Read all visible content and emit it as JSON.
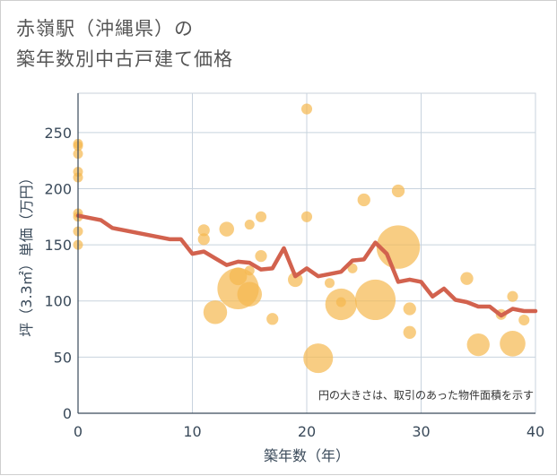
{
  "title_line1": "赤嶺駅（沖縄県）の",
  "title_line2": "築年数別中古戸建て価格",
  "chart_data": {
    "type": "scatter",
    "title": "赤嶺駅（沖縄県）の築年数別中古戸建て価格",
    "xlabel": "築年数（年）",
    "ylabel": "坪（3.3㎡）単価（万円）",
    "xlim": [
      0,
      40
    ],
    "ylim": [
      0,
      285
    ],
    "xticks": [
      0,
      10,
      20,
      30,
      40
    ],
    "yticks": [
      0,
      50,
      100,
      150,
      200,
      250
    ],
    "grid": true,
    "note": "円の大きさは、取引のあった物件面積を示す",
    "bubble_color": "#f5b84f",
    "line_color": "#d2624e",
    "points": [
      {
        "x": 0,
        "y": 240,
        "s": 1
      },
      {
        "x": 0,
        "y": 238,
        "s": 1
      },
      {
        "x": 0,
        "y": 231,
        "s": 1
      },
      {
        "x": 0,
        "y": 215,
        "s": 1
      },
      {
        "x": 0,
        "y": 210,
        "s": 1
      },
      {
        "x": 0,
        "y": 178,
        "s": 1
      },
      {
        "x": 0,
        "y": 175,
        "s": 1
      },
      {
        "x": 0,
        "y": 162,
        "s": 1
      },
      {
        "x": 0,
        "y": 150,
        "s": 1
      },
      {
        "x": 11,
        "y": 163,
        "s": 1.2
      },
      {
        "x": 11,
        "y": 155,
        "s": 1.2
      },
      {
        "x": 12,
        "y": 90,
        "s": 2.4
      },
      {
        "x": 13,
        "y": 164,
        "s": 1.5
      },
      {
        "x": 14,
        "y": 111,
        "s": 4.2
      },
      {
        "x": 14,
        "y": 122,
        "s": 1.8
      },
      {
        "x": 15,
        "y": 168,
        "s": 1
      },
      {
        "x": 15,
        "y": 127,
        "s": 1
      },
      {
        "x": 15,
        "y": 106,
        "s": 2.5
      },
      {
        "x": 16,
        "y": 175,
        "s": 1.1
      },
      {
        "x": 16,
        "y": 140,
        "s": 1.2
      },
      {
        "x": 17,
        "y": 84,
        "s": 1.2
      },
      {
        "x": 19,
        "y": 119,
        "s": 1.5
      },
      {
        "x": 20,
        "y": 271,
        "s": 1.1
      },
      {
        "x": 20,
        "y": 175,
        "s": 1.1
      },
      {
        "x": 21,
        "y": 49,
        "s": 3
      },
      {
        "x": 22,
        "y": 116,
        "s": 1
      },
      {
        "x": 23,
        "y": 97,
        "s": 3.2
      },
      {
        "x": 23,
        "y": 99,
        "s": 1
      },
      {
        "x": 24,
        "y": 129,
        "s": 1
      },
      {
        "x": 25,
        "y": 190,
        "s": 1.3
      },
      {
        "x": 26,
        "y": 101,
        "s": 4.1
      },
      {
        "x": 28,
        "y": 198,
        "s": 1.3
      },
      {
        "x": 28,
        "y": 148,
        "s": 4.4
      },
      {
        "x": 29,
        "y": 93,
        "s": 1.3
      },
      {
        "x": 29,
        "y": 72,
        "s": 1.3
      },
      {
        "x": 34,
        "y": 120,
        "s": 1.3
      },
      {
        "x": 35,
        "y": 61,
        "s": 2.3
      },
      {
        "x": 37,
        "y": 88,
        "s": 1.1
      },
      {
        "x": 38,
        "y": 104,
        "s": 1.1
      },
      {
        "x": 38,
        "y": 62,
        "s": 2.6
      },
      {
        "x": 39,
        "y": 83,
        "s": 1.1
      }
    ],
    "trend": {
      "x": [
        0,
        1,
        2,
        3,
        4,
        5,
        6,
        7,
        8,
        9,
        10,
        11,
        12,
        13,
        14,
        15,
        16,
        17,
        18,
        19,
        20,
        21,
        22,
        23,
        24,
        25,
        26,
        27,
        28,
        29,
        30,
        31,
        32,
        33,
        34,
        35,
        36,
        37,
        38,
        39,
        40
      ],
      "y": [
        176,
        174,
        172,
        165,
        163,
        161,
        159,
        157,
        155,
        155,
        142,
        144,
        138,
        132,
        135,
        134,
        128,
        129,
        147,
        122,
        129,
        122,
        124,
        126,
        136,
        137,
        152,
        142,
        117,
        119,
        117,
        104,
        111,
        101,
        99,
        95,
        95,
        87,
        93,
        91,
        91
      ]
    }
  }
}
